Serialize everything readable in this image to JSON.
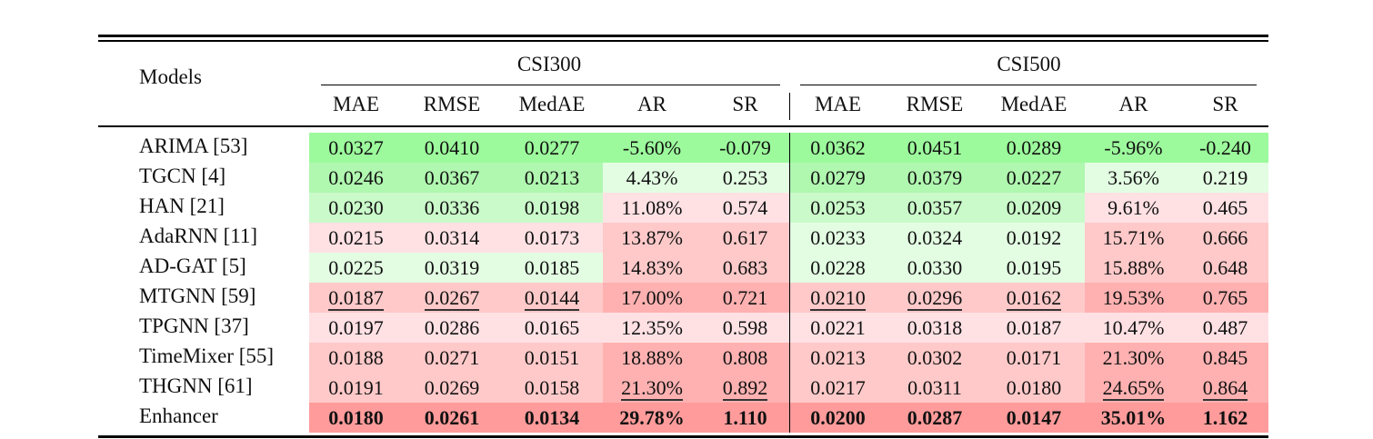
{
  "table": {
    "models_header": "Models",
    "groups": [
      {
        "label": "CSI300"
      },
      {
        "label": "CSI500"
      }
    ],
    "metrics": [
      "MAE",
      "RMSE",
      "MedAE",
      "AR",
      "SR"
    ],
    "rows": [
      {
        "model": "ARIMA [53]",
        "values": [
          "0.0327",
          "0.0410",
          "0.0277",
          "-5.60%",
          "-0.079",
          "0.0362",
          "0.0451",
          "0.0289",
          "-5.96%",
          "-0.240"
        ],
        "colors": [
          "G3",
          "G3",
          "G3",
          "G3",
          "G3",
          "G3",
          "G3",
          "G3",
          "G3",
          "G3"
        ],
        "underline": [
          false,
          false,
          false,
          false,
          false,
          false,
          false,
          false,
          false,
          false
        ],
        "bold": false
      },
      {
        "model": "TGCN [4]",
        "values": [
          "0.0246",
          "0.0367",
          "0.0213",
          "4.43%",
          "0.253",
          "0.0279",
          "0.0379",
          "0.0227",
          "3.56%",
          "0.219"
        ],
        "colors": [
          "G2",
          "G2",
          "G2",
          "G0",
          "G0",
          "G2",
          "G2",
          "G2",
          "G0",
          "G0"
        ],
        "underline": [
          false,
          false,
          false,
          false,
          false,
          false,
          false,
          false,
          false,
          false
        ],
        "bold": false
      },
      {
        "model": "HAN [21]",
        "values": [
          "0.0230",
          "0.0336",
          "0.0198",
          "11.08%",
          "0.574",
          "0.0253",
          "0.0357",
          "0.0209",
          "9.61%",
          "0.465"
        ],
        "colors": [
          "G1",
          "G1",
          "G1",
          "R0",
          "R0",
          "G1",
          "G1",
          "G1",
          "R0",
          "R0"
        ],
        "underline": [
          false,
          false,
          false,
          false,
          false,
          false,
          false,
          false,
          false,
          false
        ],
        "bold": false
      },
      {
        "model": "AdaRNN [11]",
        "values": [
          "0.0215",
          "0.0314",
          "0.0173",
          "13.87%",
          "0.617",
          "0.0233",
          "0.0324",
          "0.0192",
          "15.71%",
          "0.666"
        ],
        "colors": [
          "R0",
          "R0",
          "R0",
          "R1",
          "R1",
          "G0",
          "G0",
          "G0",
          "R1",
          "R1"
        ],
        "underline": [
          false,
          false,
          false,
          false,
          false,
          false,
          false,
          false,
          false,
          false
        ],
        "bold": false
      },
      {
        "model": "AD-GAT [5]",
        "values": [
          "0.0225",
          "0.0319",
          "0.0185",
          "14.83%",
          "0.683",
          "0.0228",
          "0.0330",
          "0.0195",
          "15.88%",
          "0.648"
        ],
        "colors": [
          "G0",
          "G0",
          "G0",
          "R1",
          "R1",
          "G0",
          "G0",
          "G0",
          "R1",
          "R1"
        ],
        "underline": [
          false,
          false,
          false,
          false,
          false,
          false,
          false,
          false,
          false,
          false
        ],
        "bold": false
      },
      {
        "model": "MTGNN [59]",
        "values": [
          "0.0187",
          "0.0267",
          "0.0144",
          "17.00%",
          "0.721",
          "0.0210",
          "0.0296",
          "0.0162",
          "19.53%",
          "0.765"
        ],
        "colors": [
          "R1",
          "R1",
          "R1",
          "R2",
          "R2",
          "R1",
          "R1",
          "R1",
          "R2",
          "R2"
        ],
        "underline": [
          true,
          true,
          true,
          false,
          false,
          true,
          true,
          true,
          false,
          false
        ],
        "bold": false
      },
      {
        "model": "TPGNN [37]",
        "values": [
          "0.0197",
          "0.0286",
          "0.0165",
          "12.35%",
          "0.598",
          "0.0221",
          "0.0318",
          "0.0187",
          "10.47%",
          "0.487"
        ],
        "colors": [
          "R0",
          "R0",
          "R0",
          "R0",
          "R0",
          "R0",
          "R0",
          "R0",
          "R0",
          "R0"
        ],
        "underline": [
          false,
          false,
          false,
          false,
          false,
          false,
          false,
          false,
          false,
          false
        ],
        "bold": false
      },
      {
        "model": "TimeMixer [55]",
        "values": [
          "0.0188",
          "0.0271",
          "0.0151",
          "18.88%",
          "0.808",
          "0.0213",
          "0.0302",
          "0.0171",
          "21.30%",
          "0.845"
        ],
        "colors": [
          "R1",
          "R1",
          "R1",
          "R2",
          "R2",
          "R1",
          "R1",
          "R1",
          "R2",
          "R2"
        ],
        "underline": [
          false,
          false,
          false,
          false,
          false,
          false,
          false,
          false,
          false,
          false
        ],
        "bold": false
      },
      {
        "model": "THGNN [61]",
        "values": [
          "0.0191",
          "0.0269",
          "0.0158",
          "21.30%",
          "0.892",
          "0.0217",
          "0.0311",
          "0.0180",
          "24.65%",
          "0.864"
        ],
        "colors": [
          "R1",
          "R1",
          "R1",
          "R2",
          "R2",
          "R1",
          "R1",
          "R1",
          "R2",
          "R2"
        ],
        "underline": [
          false,
          false,
          false,
          true,
          true,
          false,
          false,
          false,
          true,
          true
        ],
        "bold": false
      },
      {
        "model": "Enhancer",
        "values": [
          "0.0180",
          "0.0261",
          "0.0134",
          "29.78%",
          "1.110",
          "0.0200",
          "0.0287",
          "0.0147",
          "35.01%",
          "1.162"
        ],
        "colors": [
          "R3",
          "R3",
          "R3",
          "R3",
          "R3",
          "R3",
          "R3",
          "R3",
          "R3",
          "R3"
        ],
        "underline": [
          false,
          false,
          false,
          false,
          false,
          false,
          false,
          false,
          false,
          false
        ],
        "bold": true
      }
    ]
  },
  "palette": {
    "G3": "#9cfa9c",
    "G2": "#b0f7b0",
    "G1": "#cafaca",
    "G0": "#e3fde3",
    "R0": "#ffe1e4",
    "R1": "#ffc9c9",
    "R2": "#ffb1b1",
    "R3": "#ff9b9b"
  }
}
